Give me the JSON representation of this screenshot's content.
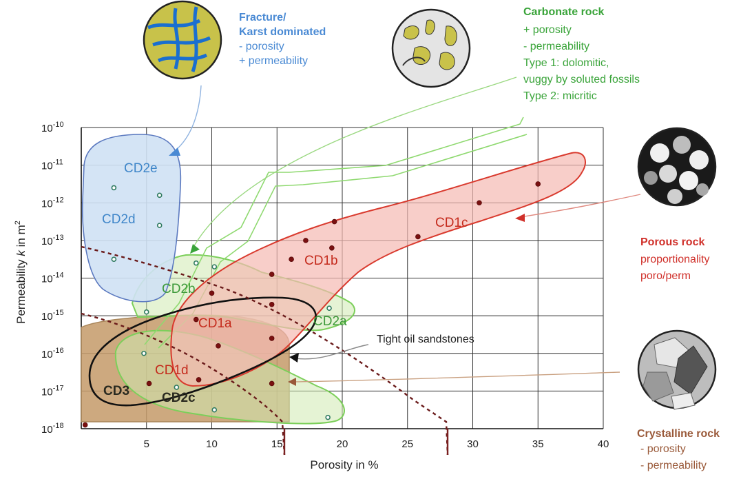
{
  "chart_data": {
    "type": "scatter",
    "x_axis": {
      "label": "Porosity in %",
      "range": [
        0,
        40
      ],
      "ticks": [
        5,
        10,
        15,
        20,
        25,
        30,
        35,
        40
      ],
      "tick_labels": [
        "5",
        "10",
        "15",
        "20",
        "25",
        "30",
        "35",
        "40"
      ]
    },
    "y_axis": {
      "label_main": "Permeability ",
      "label_italic": "k",
      "label_tail": " in m",
      "label_sup": "2",
      "scale": "log",
      "range_exp": [
        -18,
        -10
      ],
      "tick_exps": [
        -10,
        -11,
        -12,
        -13,
        -14,
        -15,
        -16,
        -17,
        -18
      ],
      "tick_base": "10",
      "tick_labels_exp": [
        "-10",
        "-11",
        "-12",
        "-13",
        "-14",
        "-15",
        "-16",
        "-17",
        "-18"
      ]
    },
    "grid": true,
    "regions": [
      {
        "label": "CD2e",
        "color": "#3f86c9",
        "fill": "#cfe1f4",
        "stroke": "#5a78bf"
      },
      {
        "label": "CD2d",
        "color": "#3f86c9",
        "fill": "#cfe1f4",
        "stroke": "#5a78bf"
      },
      {
        "label": "CD1c",
        "color": "#c42a1c",
        "fill": "#f6c3bd",
        "stroke": "#d93a2e"
      },
      {
        "label": "CD1b",
        "color": "#c42a1c",
        "fill": "#f6c3bd",
        "stroke": "#d93a2e"
      },
      {
        "label": "CD1a",
        "color": "#c42a1c",
        "fill": "#f6c3bd",
        "stroke": "#d93a2e"
      },
      {
        "label": "CD1d",
        "color": "#c42a1c",
        "fill": "#f6c3bd",
        "stroke": "#d93a2e"
      },
      {
        "label": "CD2b",
        "color": "#3d9a3a",
        "fill": "#dff0c8",
        "stroke": "#7ccf5a"
      },
      {
        "label": "CD2a",
        "color": "#3d9a3a",
        "fill": "#dff0c8",
        "stroke": "#7ccf5a"
      },
      {
        "label": "CD2c",
        "color": "#2a2a20",
        "fill": "#dff0c8",
        "stroke": "#7ccf5a"
      },
      {
        "label": "CD3",
        "color": "#2a2a20",
        "fill": "#c8a070",
        "stroke": "#a9865a"
      }
    ],
    "points": [
      {
        "group": "CD2",
        "x": 2.5,
        "y_exp": -11.6
      },
      {
        "group": "CD2",
        "x": 6.0,
        "y_exp": -11.8
      },
      {
        "group": "CD2",
        "x": 6.0,
        "y_exp": -12.6
      },
      {
        "group": "CD2",
        "x": 2.5,
        "y_exp": -13.5
      },
      {
        "group": "CD2",
        "x": 8.8,
        "y_exp": -13.6
      },
      {
        "group": "CD2",
        "x": 10.2,
        "y_exp": -13.7
      },
      {
        "group": "CD2",
        "x": 5.0,
        "y_exp": -14.9
      },
      {
        "group": "CD2",
        "x": 19.0,
        "y_exp": -14.8
      },
      {
        "group": "CD2",
        "x": 4.8,
        "y_exp": -16.0
      },
      {
        "group": "CD2",
        "x": 7.3,
        "y_exp": -16.9
      },
      {
        "group": "CD2",
        "x": 10.2,
        "y_exp": -17.5
      },
      {
        "group": "CD2",
        "x": 18.9,
        "y_exp": -17.7
      },
      {
        "group": "CD1",
        "x": 19.4,
        "y_exp": -12.5
      },
      {
        "group": "CD1",
        "x": 35.0,
        "y_exp": -11.5
      },
      {
        "group": "CD1",
        "x": 30.5,
        "y_exp": -12.0
      },
      {
        "group": "CD1",
        "x": 25.8,
        "y_exp": -12.9
      },
      {
        "group": "CD1",
        "x": 17.2,
        "y_exp": -13.0
      },
      {
        "group": "CD1",
        "x": 19.2,
        "y_exp": -13.2
      },
      {
        "group": "CD1",
        "x": 16.1,
        "y_exp": -13.5
      },
      {
        "group": "CD1",
        "x": 10.0,
        "y_exp": -14.4
      },
      {
        "group": "CD1",
        "x": 14.6,
        "y_exp": -13.9
      },
      {
        "group": "CD1",
        "x": 14.6,
        "y_exp": -14.7
      },
      {
        "group": "CD1",
        "x": 8.8,
        "y_exp": -15.1
      },
      {
        "group": "CD1",
        "x": 14.6,
        "y_exp": -15.6
      },
      {
        "group": "CD1",
        "x": 10.5,
        "y_exp": -15.8
      },
      {
        "group": "CD1",
        "x": 5.2,
        "y_exp": -16.8
      },
      {
        "group": "CD1",
        "x": 9.0,
        "y_exp": -16.7
      },
      {
        "group": "CD1",
        "x": 14.6,
        "y_exp": -16.8
      },
      {
        "group": "CD1",
        "x": 0.3,
        "y_exp": -17.9
      }
    ],
    "annotations": {
      "tight_oil": "Tight oil sandstones"
    }
  },
  "captions": {
    "fracture": {
      "title": [
        "Fracture/",
        "Karst dominated"
      ],
      "lines": [
        "-  porosity",
        "+ permeability"
      ],
      "color": "#4a8ad4"
    },
    "carbonate": {
      "title": [
        "Carbonate rock"
      ],
      "lines": [
        "+ porosity",
        "-  permeability",
        "Type 1: dolomitic,",
        "vuggy by soluted fossils",
        "Type 2: micritic"
      ],
      "color": "#3aa43a"
    },
    "porous": {
      "title": [
        "Porous rock"
      ],
      "lines": [
        "proportionality",
        "poro/perm"
      ],
      "color": "#d0302a"
    },
    "crystalline": {
      "title": [
        "Crystalline rock"
      ],
      "lines": [
        "-  porosity",
        "-  permeability"
      ],
      "color": "#9a5a3a"
    }
  },
  "icons": {
    "fracture": "fracture-rock-thumbnail-icon",
    "carbonate": "carbonate-rock-thumbnail-icon",
    "porous": "porous-rock-thumbnail-icon",
    "crystalline": "crystalline-rock-thumbnail-icon"
  }
}
